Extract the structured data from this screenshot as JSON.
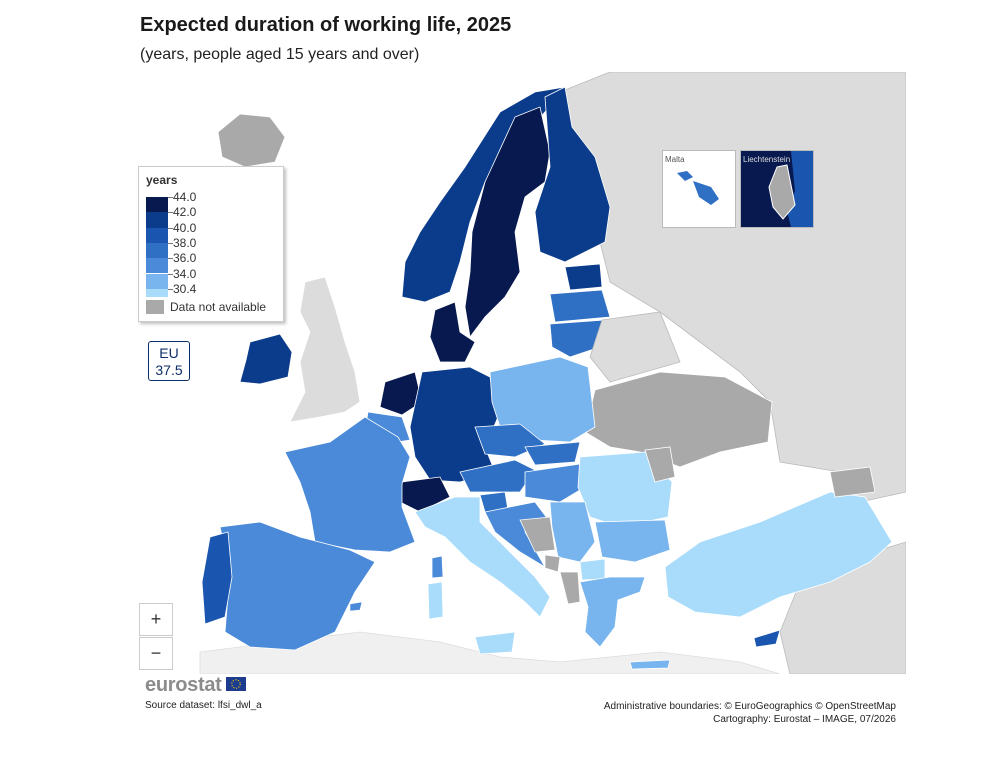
{
  "header": {
    "title": "Expected duration of working life, 2025",
    "subtitle": "(years, people aged 15 years and over)"
  },
  "legend": {
    "title": "years",
    "breaks": [
      "44.0",
      "42.0",
      "40.0",
      "38.0",
      "36.0",
      "34.0",
      "30.4"
    ],
    "colors": [
      "#08194f",
      "#0b3c8c",
      "#1a56b0",
      "#2f6fc4",
      "#4a8ad8",
      "#78b4ee",
      "#a9dcfb"
    ],
    "na_label": "Data not available",
    "na_color": "#a9a9a9"
  },
  "eu_badge": {
    "label": "EU",
    "value": "37.5"
  },
  "insets": {
    "malta": "Malta",
    "liechtenstein": "Liechtenstein"
  },
  "zoom": {
    "in": "+",
    "out": "−"
  },
  "footer": {
    "logo": "eurostat",
    "source": "Source dataset: lfsi_dwl_a",
    "credits_1": "Administrative boundaries: © EuroGeographics © OpenStreetMap",
    "credits_2": "Cartography: Eurostat – IMAGE, 07/2026"
  },
  "map_colors": {
    "sea": "#ffffff",
    "non_eu_land": "#dcdcdc",
    "borders": "#ffffff"
  }
}
